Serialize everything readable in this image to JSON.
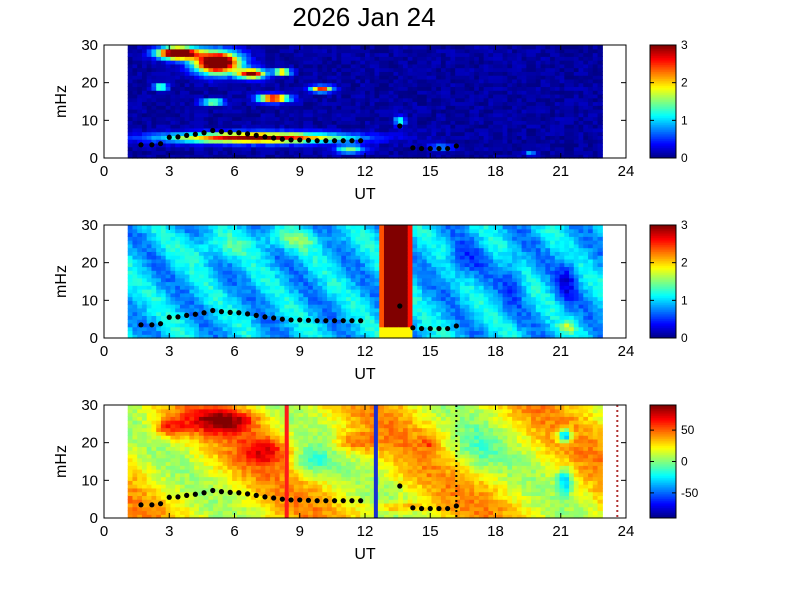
{
  "title": "2026 Jan 24",
  "chart_data": [
    {
      "type": "heatmap",
      "panel": "top",
      "xlabel": "UT",
      "ylabel": "mHz",
      "xlim": [
        0,
        24
      ],
      "ylim": [
        0,
        30
      ],
      "xticks": [
        0,
        3,
        6,
        9,
        12,
        15,
        18,
        21,
        24
      ],
      "yticks": [
        0,
        10,
        20,
        30
      ],
      "colorbar": {
        "range": [
          0,
          3
        ],
        "ticks": [
          0,
          1,
          2,
          3
        ],
        "colormap": "jet"
      },
      "data_extent_x": [
        1,
        23
      ],
      "markers_x": [
        1.7,
        2.2,
        2.6,
        3.0,
        3.4,
        3.8,
        4.2,
        4.6,
        5.0,
        5.4,
        5.8,
        6.2,
        6.6,
        7.0,
        7.4,
        7.8,
        8.2,
        8.6,
        9.0,
        9.4,
        9.8,
        10.2,
        10.6,
        11.0,
        11.4,
        11.8,
        13.6,
        14.2,
        14.6,
        15.0,
        15.4,
        15.8,
        16.2
      ],
      "markers_y": [
        3.5,
        3.5,
        3.8,
        5.5,
        5.6,
        6.0,
        6.3,
        6.7,
        7.3,
        7.0,
        6.8,
        6.7,
        6.4,
        6.0,
        5.6,
        5.3,
        5.0,
        4.8,
        4.8,
        4.7,
        4.6,
        4.6,
        4.6,
        4.6,
        4.6,
        4.6,
        8.5,
        2.7,
        2.5,
        2.5,
        2.5,
        2.5,
        3.2
      ]
    },
    {
      "type": "heatmap",
      "panel": "middle",
      "xlabel": "UT",
      "ylabel": "mHz",
      "xlim": [
        0,
        24
      ],
      "ylim": [
        0,
        30
      ],
      "xticks": [
        0,
        3,
        6,
        9,
        12,
        15,
        18,
        21,
        24
      ],
      "yticks": [
        0,
        10,
        20,
        30
      ],
      "colorbar": {
        "range": [
          0,
          3
        ],
        "ticks": [
          0,
          1,
          2,
          3
        ],
        "colormap": "jet"
      },
      "data_extent_x": [
        1,
        23
      ],
      "markers_x": [
        1.7,
        2.2,
        2.6,
        3.0,
        3.4,
        3.8,
        4.2,
        4.6,
        5.0,
        5.4,
        5.8,
        6.2,
        6.6,
        7.0,
        7.4,
        7.8,
        8.2,
        8.6,
        9.0,
        9.4,
        9.8,
        10.2,
        10.6,
        11.0,
        11.4,
        11.8,
        13.6,
        14.2,
        14.6,
        15.0,
        15.4,
        15.8,
        16.2
      ],
      "markers_y": [
        3.5,
        3.5,
        3.8,
        5.5,
        5.6,
        6.0,
        6.3,
        6.7,
        7.3,
        7.0,
        6.8,
        6.7,
        6.4,
        6.0,
        5.6,
        5.3,
        5.0,
        4.8,
        4.8,
        4.7,
        4.6,
        4.6,
        4.6,
        4.6,
        4.6,
        4.6,
        8.5,
        2.7,
        2.5,
        2.5,
        2.5,
        2.5,
        3.2
      ]
    },
    {
      "type": "heatmap",
      "panel": "bottom",
      "xlabel": "UT",
      "ylabel": "mHz",
      "xlim": [
        0,
        24
      ],
      "ylim": [
        0,
        30
      ],
      "xticks": [
        0,
        3,
        6,
        9,
        12,
        15,
        18,
        21,
        24
      ],
      "yticks": [
        0,
        10,
        20,
        30
      ],
      "colorbar": {
        "range": [
          -90,
          90
        ],
        "ticks": [
          50,
          0,
          -50
        ],
        "colormap": "jet"
      },
      "data_extent_x": [
        1,
        23
      ],
      "vlines": [
        {
          "x": 8.4,
          "color": "#ff1a1a",
          "style": "solid"
        },
        {
          "x": 12.5,
          "color": "#1a2fd0",
          "style": "solid"
        },
        {
          "x": 16.2,
          "color": "#000000",
          "style": "dotted"
        },
        {
          "x": 23.6,
          "color": "#b03030",
          "style": "dotted"
        }
      ],
      "markers_x": [
        1.7,
        2.2,
        2.6,
        3.0,
        3.4,
        3.8,
        4.2,
        4.6,
        5.0,
        5.4,
        5.8,
        6.2,
        6.6,
        7.0,
        7.4,
        7.8,
        8.2,
        8.6,
        9.0,
        9.4,
        9.8,
        10.2,
        10.6,
        11.0,
        11.4,
        11.8,
        13.6,
        14.2,
        14.6,
        15.0,
        15.4,
        15.8,
        16.2
      ],
      "markers_y": [
        3.5,
        3.5,
        3.8,
        5.5,
        5.6,
        6.0,
        6.3,
        6.7,
        7.3,
        7.0,
        6.8,
        6.7,
        6.4,
        6.0,
        5.6,
        5.3,
        5.0,
        4.8,
        4.8,
        4.7,
        4.6,
        4.6,
        4.6,
        4.6,
        4.6,
        4.6,
        8.5,
        2.7,
        2.5,
        2.5,
        2.5,
        2.5,
        3.2
      ]
    }
  ]
}
